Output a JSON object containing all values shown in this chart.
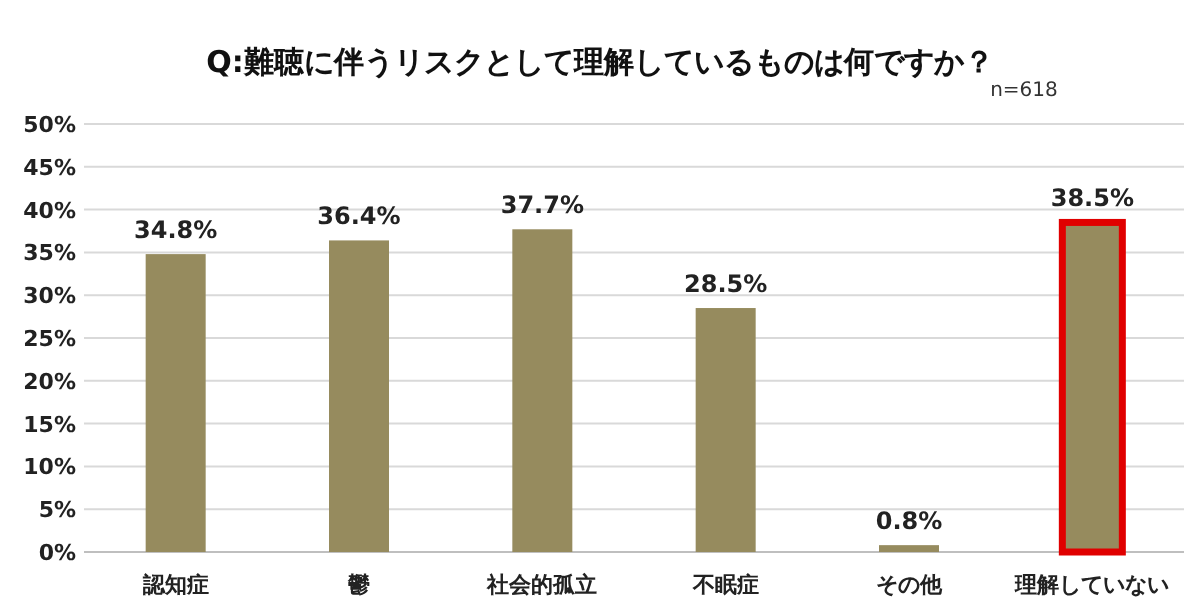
{
  "chart_data": {
    "type": "bar",
    "title": "Q:難聴に伴うリスクとして理解しているものは何ですか？",
    "annotations": [
      "n=618"
    ],
    "categories": [
      "認知症",
      "鬱",
      "社会的孤立",
      "不眠症",
      "その他",
      "理解していない"
    ],
    "values": [
      34.8,
      36.4,
      37.7,
      28.5,
      0.8,
      38.5
    ],
    "value_labels": [
      "34.8%",
      "36.4%",
      "37.7%",
      "28.5%",
      "0.8%",
      "38.5%"
    ],
    "color": "#968b5e",
    "ylim": [
      0,
      50
    ],
    "yticks": [
      {
        "value": 0,
        "label": "0%"
      },
      {
        "value": 5,
        "label": "5%"
      },
      {
        "value": 10,
        "label": "10%"
      },
      {
        "value": 15,
        "label": "15%"
      },
      {
        "value": 20,
        "label": "20%"
      },
      {
        "value": 25,
        "label": "25%"
      },
      {
        "value": 30,
        "label": "30%"
      },
      {
        "value": 35,
        "label": "35%"
      },
      {
        "value": 40,
        "label": "40%"
      },
      {
        "value": 45,
        "label": "45%"
      },
      {
        "value": 50,
        "label": "50%"
      }
    ],
    "grid": "y"
  }
}
